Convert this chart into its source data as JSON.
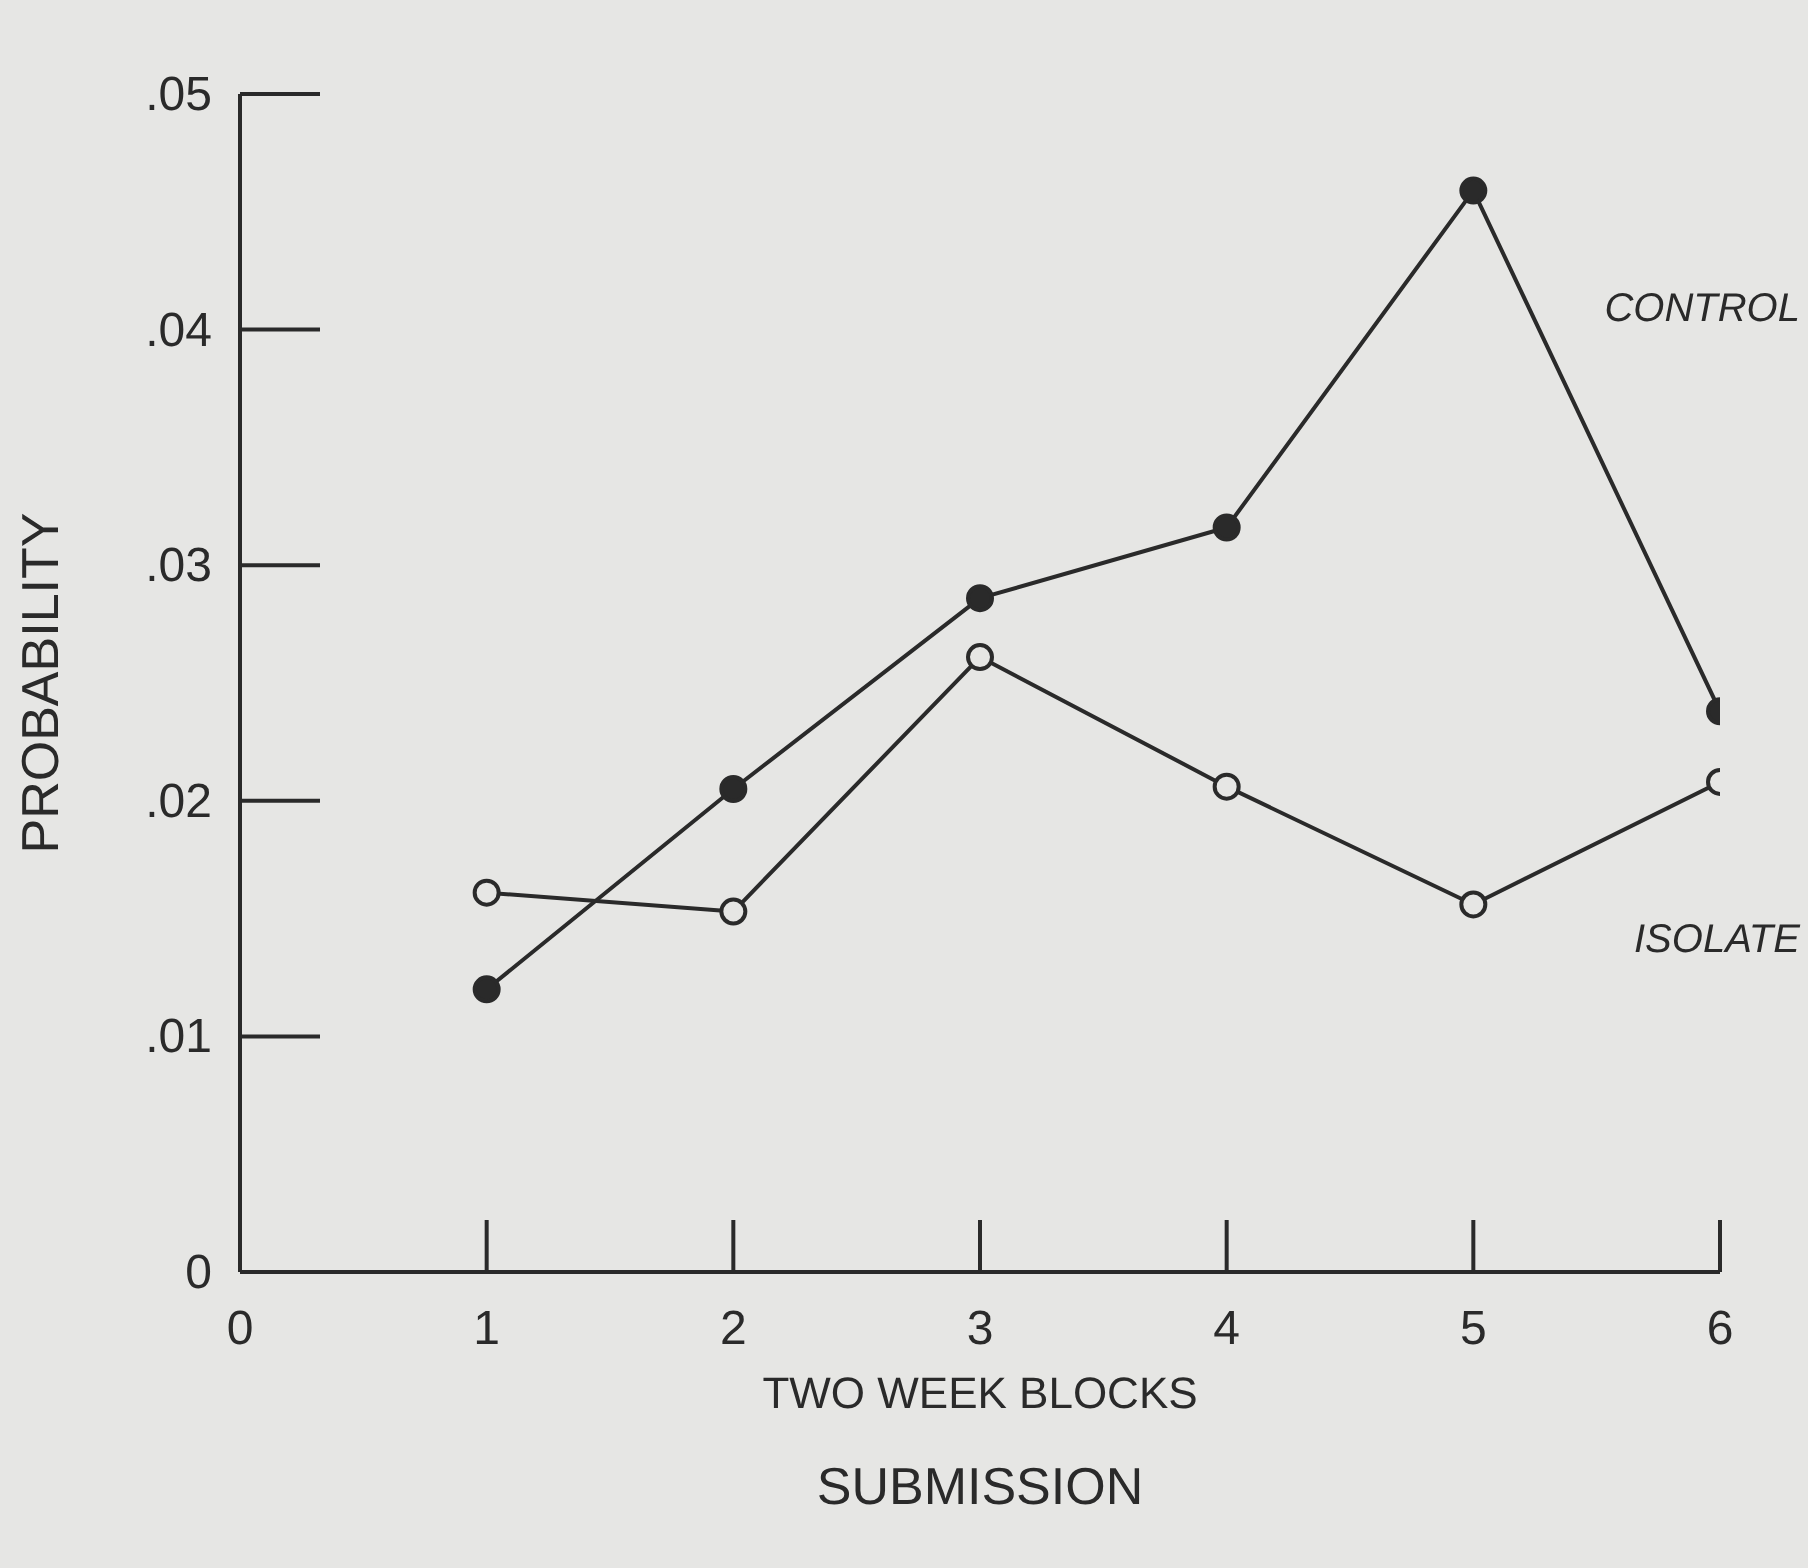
{
  "chart_data": {
    "type": "line",
    "title": "SUBMISSION",
    "xlabel": "TWO WEEK BLOCKS",
    "ylabel": "PROBABILITY",
    "x": [
      1,
      2,
      3,
      4,
      5,
      6
    ],
    "series": [
      {
        "name": "CONTROL",
        "color": "#2a2a2a",
        "values": [
          0.012,
          0.0205,
          0.0286,
          0.0316,
          0.0459,
          0.0238
        ]
      },
      {
        "name": "ISOLATE",
        "color": "#2a2a2a",
        "values": [
          0.0161,
          0.0153,
          0.0261,
          0.0206,
          0.0156,
          0.0208
        ]
      }
    ],
    "xlim": [
      0,
      6
    ],
    "xticks": [
      0,
      1,
      2,
      3,
      4,
      5,
      6
    ],
    "ylim": [
      0,
      0.05
    ],
    "yticks": [
      0,
      {
        "value": 0.01,
        "label": ".01"
      },
      {
        "value": 0.02,
        "label": ".02"
      },
      {
        "value": 0.03,
        "label": ".03"
      },
      {
        "value": 0.04,
        "label": ".04"
      },
      {
        "value": 0.05,
        "label": ".05"
      }
    ],
    "grid": false,
    "legend": false,
    "marker": "circle",
    "line_style": "solid"
  }
}
